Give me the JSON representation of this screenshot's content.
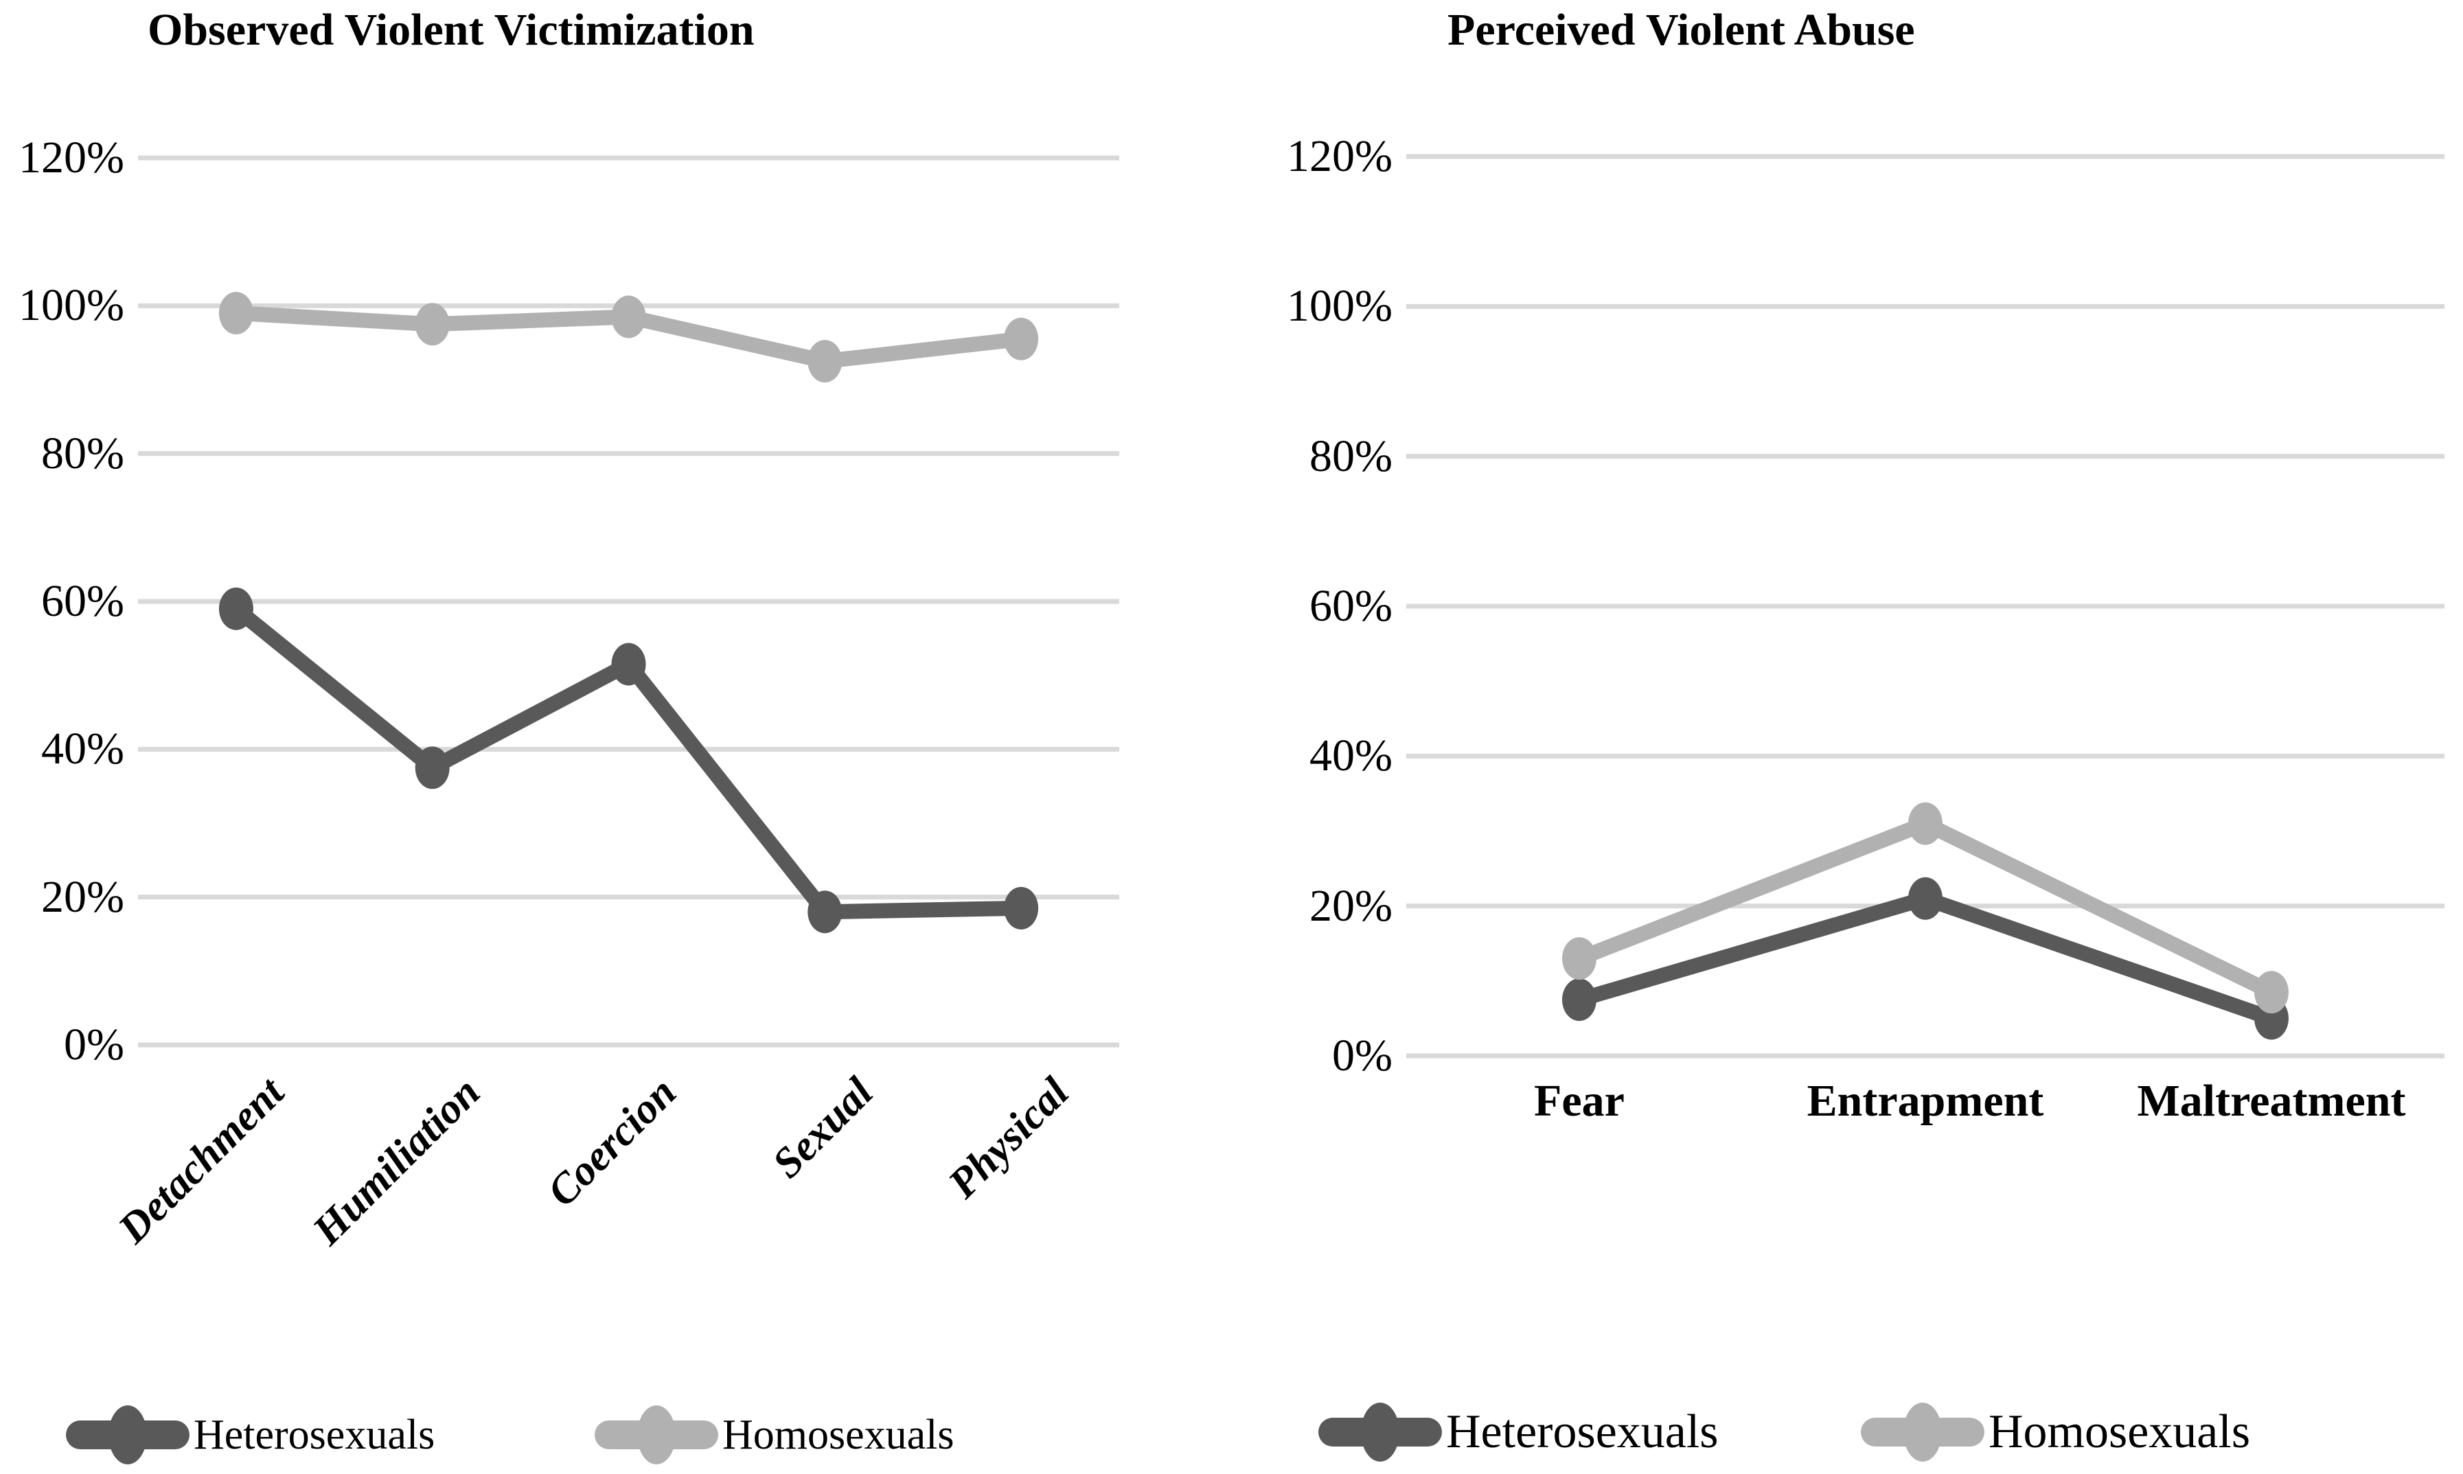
{
  "page": {
    "background": "#ffffff"
  },
  "colors": {
    "grid": "#d9d9d9",
    "text": "#000000"
  },
  "chart_data": [
    {
      "type": "line",
      "title": "Observed Violent Victimization",
      "categories": [
        "Detachment",
        "Humiliation",
        "Coercion",
        "Sexual",
        "Physical"
      ],
      "series": [
        {
          "name": "Heterosexuals",
          "color": "#595959",
          "values": [
            59,
            37.5,
            51.5,
            18,
            18.5
          ]
        },
        {
          "name": "Homosexuals",
          "color": "#b1b1b1",
          "values": [
            99,
            97.5,
            98.5,
            92.5,
            95.5
          ]
        }
      ],
      "ylim": [
        0,
        120
      ],
      "ytick_step": 20,
      "ytick_labels": [
        "0%",
        "20%",
        "40%",
        "60%",
        "80%",
        "100%",
        "120%"
      ],
      "grid": true,
      "legend_position": "bottom",
      "x_tick_rotation": 45,
      "xlabel": "",
      "ylabel": ""
    },
    {
      "type": "line",
      "title": "Perceived Violent Abuse",
      "categories": [
        "Fear",
        "Entrapment",
        "Maltreatment"
      ],
      "series": [
        {
          "name": "Heterosexuals",
          "color": "#595959",
          "values": [
            7.5,
            21,
            5
          ]
        },
        {
          "name": "Homosexuals",
          "color": "#b1b1b1",
          "values": [
            13,
            31,
            8.5
          ]
        }
      ],
      "ylim": [
        0,
        120
      ],
      "ytick_step": 20,
      "ytick_labels": [
        "0%",
        "20%",
        "40%",
        "60%",
        "80%",
        "100%",
        "120%"
      ],
      "grid": true,
      "legend_position": "bottom",
      "x_tick_rotation": 0,
      "xlabel": "",
      "ylabel": ""
    }
  ]
}
